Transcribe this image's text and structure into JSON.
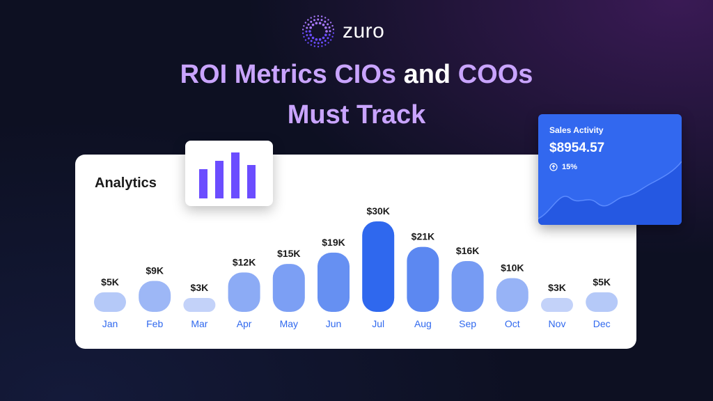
{
  "brand": {
    "name": "zuro",
    "logo_icon": "dotted-ring-logo-icon"
  },
  "headline": {
    "line1_part1": "ROI Metrics CIOs",
    "line1_part2": " and ",
    "line1_part3": "COOs",
    "line2": "Must Track"
  },
  "colors": {
    "accent_purple": "#c9a4ff",
    "bar_light": "#dbe4fb",
    "bar_dark": "#2f68ee",
    "sales_card": "#3268ef",
    "month_label": "#2f68ee"
  },
  "analytics": {
    "title": "Analytics",
    "icon": "bar-chart-icon"
  },
  "sales_activity": {
    "title": "Sales Activity",
    "value": "$8954.57",
    "change": "15%",
    "change_icon": "arrow-up-circle-icon"
  },
  "chart_data": {
    "type": "bar",
    "title": "Analytics",
    "categories": [
      "Jan",
      "Feb",
      "Mar",
      "Apr",
      "May",
      "Jun",
      "Jul",
      "Aug",
      "Sep",
      "Oct",
      "Nov",
      "Dec"
    ],
    "values": [
      5,
      9,
      3,
      12,
      15,
      19,
      30,
      21,
      16,
      10,
      3,
      5
    ],
    "value_labels": [
      "$5K",
      "$9K",
      "$3K",
      "$12K",
      "$15K",
      "$19K",
      "$30K",
      "$21K",
      "$16K",
      "$10K",
      "$3K",
      "$5K"
    ],
    "unit": "$K",
    "ylim": [
      0,
      30
    ],
    "grid": false
  }
}
